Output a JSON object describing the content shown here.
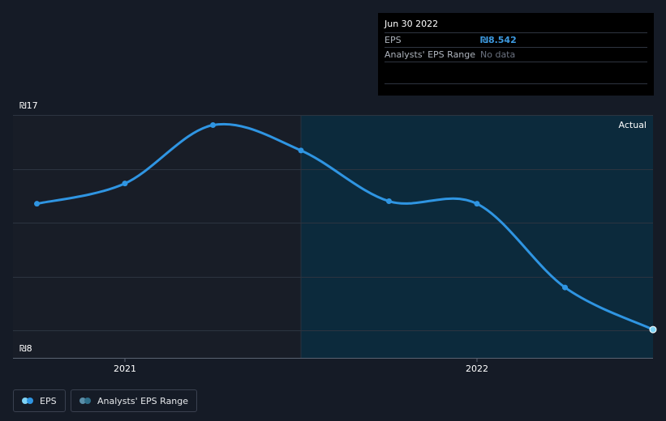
{
  "tooltip": {
    "date": "Jun 30 2022",
    "eps_label": "EPS",
    "eps_value": "₪8.542",
    "range_label": "Analysts' EPS Range",
    "range_value": "No data"
  },
  "colors": {
    "background": "#151b26",
    "past_region": "#181d27",
    "actual_region": "#0c2a3c",
    "eps_line": "#2f95e2",
    "range_dot": "#2f6f8a"
  },
  "legend": {
    "eps": "EPS",
    "range": "Analysts' EPS Range"
  },
  "chart_data": {
    "type": "line",
    "title": "",
    "region_label": "Actual",
    "y_top_label": "₪17",
    "y_bottom_label": "₪8",
    "ylim": [
      8,
      17
    ],
    "x_ticks": [
      {
        "label": "2021",
        "t": 2021.0
      },
      {
        "label": "2022",
        "t": 2022.0
      }
    ],
    "actual_from": 2021.5,
    "series": [
      {
        "name": "EPS",
        "points": [
          {
            "t": 2020.75,
            "y": 13.5
          },
          {
            "t": 2021.0,
            "y": 14.3
          },
          {
            "t": 2021.25,
            "y": 16.6
          },
          {
            "t": 2021.5,
            "y": 15.6
          },
          {
            "t": 2021.75,
            "y": 13.6
          },
          {
            "t": 2022.0,
            "y": 13.5
          },
          {
            "t": 2022.25,
            "y": 10.2
          },
          {
            "t": 2022.5,
            "y": 8.54
          }
        ]
      }
    ]
  }
}
